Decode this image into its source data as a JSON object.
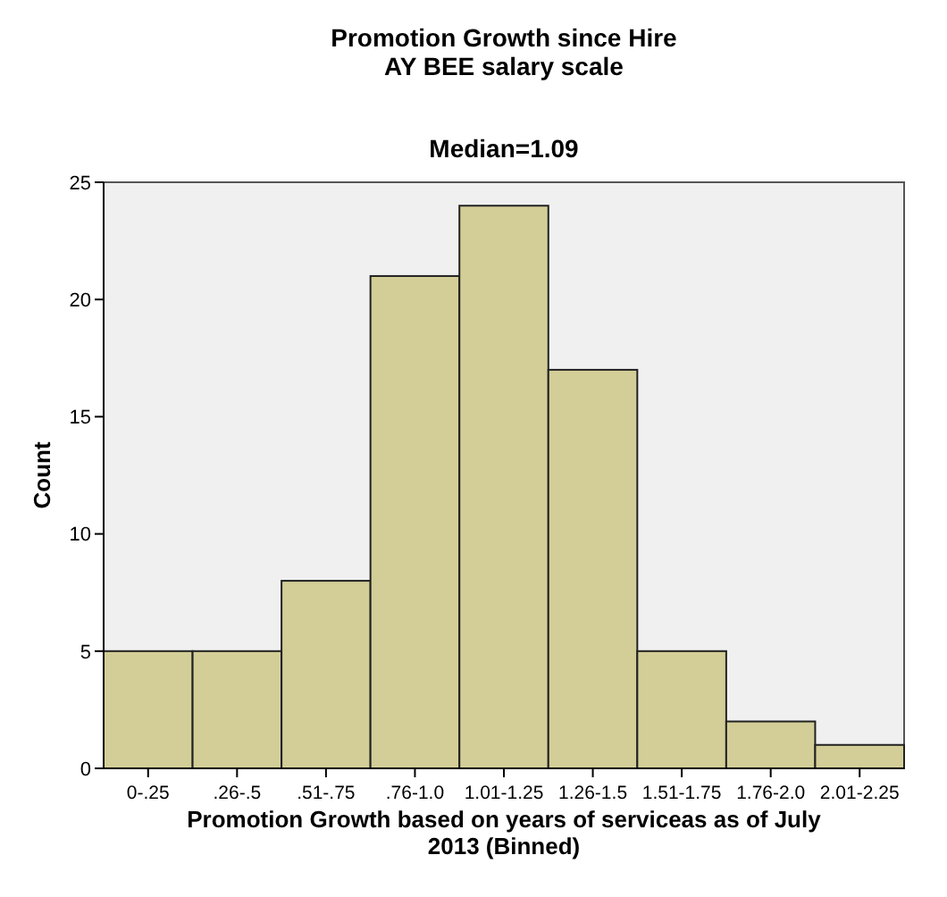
{
  "chart_data": {
    "type": "bar",
    "title": "Promotion Growth since Hire\nAY BEE salary scale",
    "subtitle": "Median=1.09",
    "xlabel": "Promotion Growth based on years of serviceas as of July\n2013 (Binned)",
    "ylabel": "Count",
    "categories": [
      "0-.25",
      ".26-.5",
      ".51-.75",
      ".76-1.0",
      "1.01-1.25",
      "1.26-1.5",
      "1.51-1.75",
      "1.76-2.0",
      "2.01-2.25"
    ],
    "values": [
      5,
      5,
      8,
      21,
      24,
      17,
      5,
      2,
      1
    ],
    "color": "#d3ce97",
    "ylim": [
      0,
      25
    ],
    "yticks": [
      0,
      5,
      10,
      15,
      20,
      25
    ],
    "grid": false
  }
}
